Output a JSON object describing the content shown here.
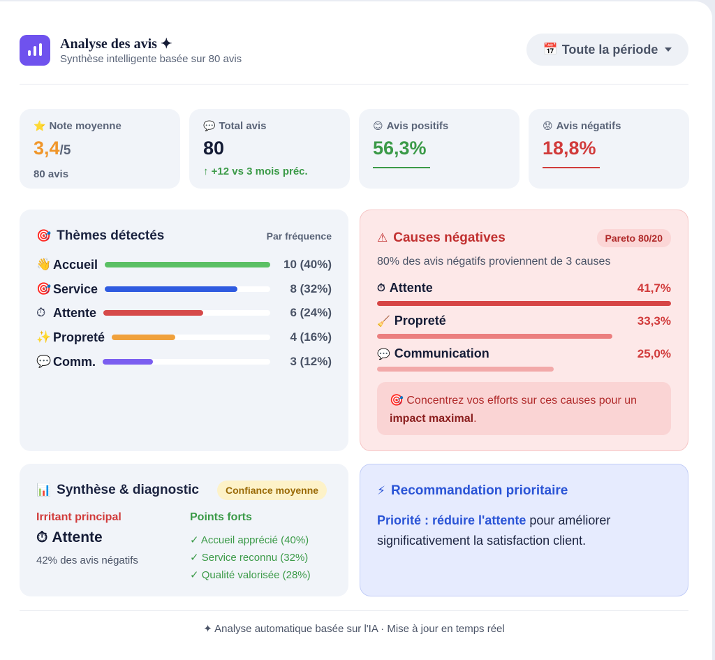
{
  "header": {
    "title": "Analyse des avis ✦",
    "subtitle": "Synthèse intelligente basée sur 80 avis",
    "period_icon": "📅",
    "period_label": "Toute la période"
  },
  "kpis": [
    {
      "icon": "⭐",
      "label": "Note moyenne",
      "value": "3,4",
      "suffix": "/5",
      "footer": "80 avis",
      "color": "#f0962a"
    },
    {
      "icon": "💬",
      "label": "Total avis",
      "value": "80",
      "suffix": "",
      "footer": "↑ +12 vs 3 mois préc.",
      "color": "#151c36"
    },
    {
      "icon": "😊",
      "label": "Avis positifs",
      "value": "56,3%",
      "suffix": "",
      "footer": "",
      "color": "#3b9a48"
    },
    {
      "icon": "😟",
      "label": "Avis négatifs",
      "value": "18,8%",
      "suffix": "",
      "footer": "",
      "color": "#d13b3b"
    }
  ],
  "themes": {
    "title": "Thèmes détectés",
    "title_icon": "🎯",
    "hint": "Par fréquence",
    "items": [
      {
        "icon": "👋",
        "name": "Accueil",
        "value": "10 (40%)",
        "fraction": 1.0,
        "color": "#5ac064"
      },
      {
        "icon": "🎯",
        "name": "Service",
        "value": "8 (32%)",
        "fraction": 0.8,
        "color": "#2f5be0"
      },
      {
        "icon": "⏱",
        "name": "Attente",
        "value": "6 (24%)",
        "fraction": 0.6,
        "color": "#d64a4a"
      },
      {
        "icon": "✨",
        "name": "Propreté",
        "value": "4 (16%)",
        "fraction": 0.4,
        "color": "#f0a13c"
      },
      {
        "icon": "💬",
        "name": "Comm.",
        "value": "3 (12%)",
        "fraction": 0.3,
        "color": "#7b5ef0"
      }
    ]
  },
  "causes": {
    "title": "Causes négatives",
    "title_icon": "⚠",
    "badge": "Pareto 80/20",
    "lead": "80% des avis négatifs proviennent de 3 causes",
    "items": [
      {
        "icon": "⏱",
        "name": "Attente",
        "pct": "41,7%",
        "fraction": 1.0,
        "color": "#d64545"
      },
      {
        "icon": "🧹",
        "name": "Propreté",
        "pct": "33,3%",
        "fraction": 0.8,
        "color": "#eb7f7f"
      },
      {
        "icon": "💬",
        "name": "Communication",
        "pct": "25,0%",
        "fraction": 0.6,
        "color": "#f2a9a9"
      }
    ],
    "advice_icon": "🎯",
    "advice_text": "Concentrez vos efforts sur ces causes pour un",
    "advice_bold": "impact maximal",
    "advice_end": "."
  },
  "synthesis": {
    "title": "Synthèse & diagnostic",
    "title_icon": "📊",
    "confidence": "Confiance moyenne",
    "irritant_label": "Irritant principal",
    "irritant_icon": "⏱",
    "irritant_value": "Attente",
    "irritant_sub": "42% des avis négatifs",
    "strengths_label": "Points forts",
    "strengths": [
      "✓ Accueil apprécié (40%)",
      "✓ Service reconnu (32%)",
      "✓ Qualité valorisée (28%)"
    ]
  },
  "recommendation": {
    "title": "Recommandation prioritaire",
    "title_icon": "⚡",
    "bold": "Priorité : réduire l'attente",
    "text": " pour améliorer significativement la satisfaction client."
  },
  "footer": "✦ Analyse automatique basée sur l'IA · Mise à jour en temps réel"
}
